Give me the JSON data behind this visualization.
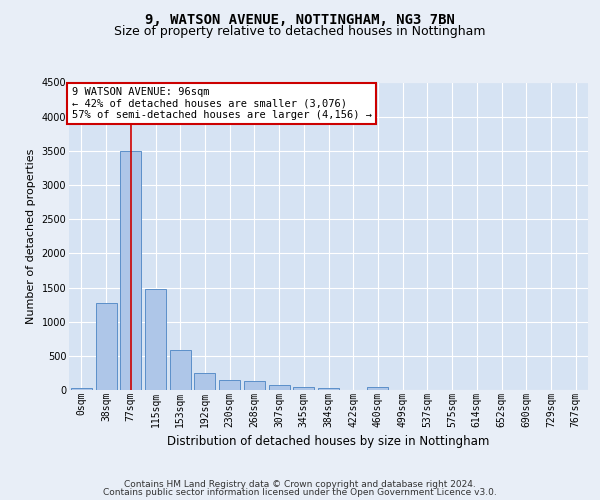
{
  "title1": "9, WATSON AVENUE, NOTTINGHAM, NG3 7BN",
  "title2": "Size of property relative to detached houses in Nottingham",
  "xlabel": "Distribution of detached houses by size in Nottingham",
  "ylabel": "Number of detached properties",
  "bar_categories": [
    "0sqm",
    "38sqm",
    "77sqm",
    "115sqm",
    "153sqm",
    "192sqm",
    "230sqm",
    "268sqm",
    "307sqm",
    "345sqm",
    "384sqm",
    "422sqm",
    "460sqm",
    "499sqm",
    "537sqm",
    "575sqm",
    "614sqm",
    "652sqm",
    "690sqm",
    "729sqm",
    "767sqm"
  ],
  "bar_values": [
    30,
    1270,
    3500,
    1480,
    580,
    255,
    140,
    130,
    75,
    50,
    35,
    0,
    50,
    0,
    0,
    0,
    0,
    0,
    0,
    0,
    0
  ],
  "bar_color": "#aec6e8",
  "bar_edge_color": "#5b8fc9",
  "vline_color": "#cc0000",
  "annotation_text": "9 WATSON AVENUE: 96sqm\n← 42% of detached houses are smaller (3,076)\n57% of semi-detached houses are larger (4,156) →",
  "annotation_box_color": "#ffffff",
  "annotation_box_edge": "#cc0000",
  "ylim": [
    0,
    4500
  ],
  "yticks": [
    0,
    500,
    1000,
    1500,
    2000,
    2500,
    3000,
    3500,
    4000,
    4500
  ],
  "bg_color": "#e8eef7",
  "plot_bg_color": "#d6e3f3",
  "grid_color": "#ffffff",
  "footer1": "Contains HM Land Registry data © Crown copyright and database right 2024.",
  "footer2": "Contains public sector information licensed under the Open Government Licence v3.0.",
  "title1_fontsize": 10,
  "title2_fontsize": 9,
  "xlabel_fontsize": 8.5,
  "ylabel_fontsize": 8,
  "tick_fontsize": 7,
  "annotation_fontsize": 7.5,
  "footer_fontsize": 6.5
}
